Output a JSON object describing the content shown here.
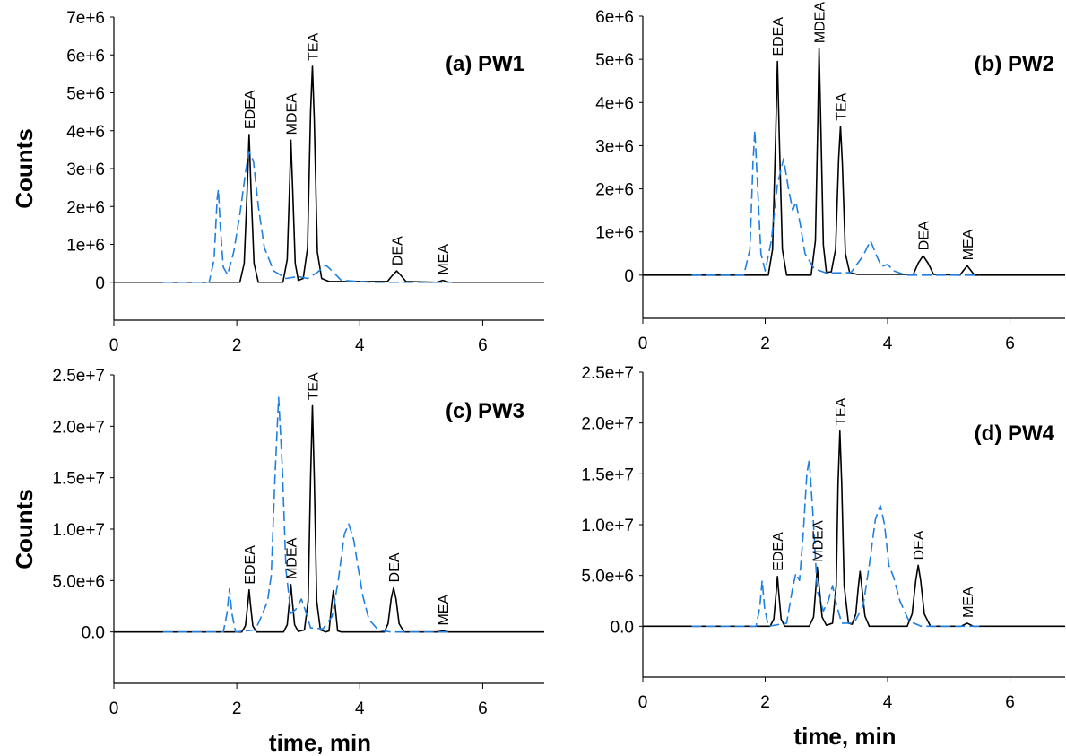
{
  "chart_data": [
    {
      "type": "line",
      "title": "(a) PW1",
      "ylabel": "Counts",
      "xlim": [
        0,
        7
      ],
      "xticks": [
        0,
        2,
        4,
        6
      ],
      "ylim": [
        -1000000,
        7000000
      ],
      "yticks": [
        0,
        {
          "value": 1000000,
          "label": "1e+6"
        },
        {
          "value": 2000000,
          "label": "2e+6"
        },
        {
          "value": 3000000,
          "label": "3e+6"
        },
        {
          "value": 4000000,
          "label": "4e+6"
        },
        {
          "value": 5000000,
          "label": "5e+6"
        },
        {
          "value": 6000000,
          "label": "6e+6"
        },
        {
          "value": 7000000,
          "label": "7e+6"
        }
      ],
      "series": [
        {
          "color": "#000000",
          "style": "solid",
          "x": [
            0,
            2.05,
            2.12,
            2.17,
            2.2,
            2.23,
            2.28,
            2.35,
            2.75,
            2.82,
            2.86,
            2.88,
            2.91,
            2.95,
            3.0,
            3.08,
            3.15,
            3.2,
            3.23,
            3.26,
            3.31,
            3.38,
            3.5,
            4.45,
            4.53,
            4.6,
            4.67,
            4.75,
            5.25,
            5.35,
            5.45,
            7
          ],
          "values": [
            0,
            0,
            500000,
            2500000,
            3900000,
            2500000,
            500000,
            0,
            0,
            600000,
            2600000,
            3750000,
            2400000,
            500000,
            50000,
            100000,
            900000,
            4500000,
            5700000,
            4300000,
            800000,
            100000,
            20000,
            20000,
            180000,
            300000,
            180000,
            20000,
            0,
            50000,
            0,
            0
          ]
        },
        {
          "color": "#1f7fe0",
          "style": "dashed",
          "x": [
            0.8,
            1.55,
            1.63,
            1.68,
            1.7,
            1.73,
            1.78,
            1.85,
            1.95,
            2.05,
            2.15,
            2.2,
            2.27,
            2.35,
            2.45,
            2.6,
            2.8,
            3.0,
            3.15,
            3.3,
            3.45,
            3.55,
            3.7,
            4.2,
            5.5
          ],
          "values": [
            0,
            0,
            600000,
            2200000,
            2450000,
            1500000,
            400000,
            200000,
            800000,
            1800000,
            3000000,
            3450000,
            3200000,
            2000000,
            900000,
            300000,
            100000,
            150000,
            100000,
            250000,
            450000,
            300000,
            50000,
            0,
            0
          ]
        }
      ],
      "annotations": [
        {
          "text": "EDEA",
          "x": 2.2,
          "y": 3900000
        },
        {
          "text": "MDEA",
          "x": 2.88,
          "y": 3750000
        },
        {
          "text": "TEA",
          "x": 3.23,
          "y": 5700000
        },
        {
          "text": "DEA",
          "x": 4.6,
          "y": 300000
        },
        {
          "text": "MEA",
          "x": 5.35,
          "y": 50000
        }
      ]
    },
    {
      "type": "line",
      "title": "(b) PW2",
      "xlim": [
        0,
        6.9
      ],
      "xticks": [
        0,
        2,
        4,
        6
      ],
      "ylim": [
        -1000000,
        6000000
      ],
      "yticks": [
        0,
        {
          "value": 1000000,
          "label": "1e+6"
        },
        {
          "value": 2000000,
          "label": "2e+6"
        },
        {
          "value": 3000000,
          "label": "3e+6"
        },
        {
          "value": 4000000,
          "label": "4e+6"
        },
        {
          "value": 5000000,
          "label": "5e+6"
        },
        {
          "value": 6000000,
          "label": "6e+6"
        }
      ],
      "series": [
        {
          "color": "#000000",
          "style": "solid",
          "x": [
            0,
            2.05,
            2.12,
            2.17,
            2.2,
            2.23,
            2.28,
            2.35,
            2.75,
            2.82,
            2.86,
            2.88,
            2.91,
            2.95,
            3.0,
            3.08,
            3.15,
            3.2,
            3.23,
            3.26,
            3.31,
            3.38,
            3.5,
            4.42,
            4.5,
            4.58,
            4.66,
            4.75,
            5.18,
            5.3,
            5.42,
            6.9
          ],
          "values": [
            0,
            0,
            600000,
            3200000,
            4950000,
            3200000,
            600000,
            0,
            0,
            800000,
            3600000,
            5250000,
            3400000,
            700000,
            60000,
            80000,
            600000,
            2700000,
            3450000,
            2600000,
            500000,
            60000,
            20000,
            20000,
            280000,
            450000,
            280000,
            20000,
            0,
            220000,
            0,
            0
          ]
        },
        {
          "color": "#1f7fe0",
          "style": "dashed",
          "x": [
            0.8,
            1.65,
            1.75,
            1.8,
            1.83,
            1.87,
            1.93,
            2.0,
            2.1,
            2.2,
            2.3,
            2.38,
            2.45,
            2.5,
            2.57,
            2.65,
            2.8,
            3.0,
            3.4,
            3.6,
            3.72,
            3.82,
            3.9,
            4.0,
            4.1,
            4.3,
            5.5
          ],
          "values": [
            0,
            0,
            600000,
            2600000,
            3350000,
            2200000,
            500000,
            100000,
            800000,
            2100000,
            2700000,
            2000000,
            1500000,
            1700000,
            1200000,
            500000,
            150000,
            50000,
            60000,
            450000,
            800000,
            450000,
            200000,
            250000,
            100000,
            0,
            0
          ]
        }
      ],
      "annotations": [
        {
          "text": "EDEA",
          "x": 2.2,
          "y": 4950000
        },
        {
          "text": "MDEA",
          "x": 2.88,
          "y": 5250000
        },
        {
          "text": "TEA",
          "x": 3.23,
          "y": 3450000
        },
        {
          "text": "DEA",
          "x": 4.58,
          "y": 450000
        },
        {
          "text": "MEA",
          "x": 5.3,
          "y": 220000
        }
      ]
    },
    {
      "type": "line",
      "title": "(c) PW3",
      "ylabel": "Counts",
      "xlabel": "time, min",
      "xlim": [
        0,
        7
      ],
      "xticks": [
        0,
        2,
        4,
        6
      ],
      "ylim": [
        -5000000,
        25000000
      ],
      "yticks": [
        {
          "value": 0,
          "label": "0.0"
        },
        {
          "value": 5000000,
          "label": "5.0e+6"
        },
        {
          "value": 10000000,
          "label": "1.0e+7"
        },
        {
          "value": 15000000,
          "label": "1.5e+7"
        },
        {
          "value": 20000000,
          "label": "2.0e+7"
        },
        {
          "value": 25000000,
          "label": "2.5e+7"
        }
      ],
      "series": [
        {
          "color": "#000000",
          "style": "solid",
          "x": [
            0,
            2.08,
            2.14,
            2.18,
            2.2,
            2.22,
            2.26,
            2.32,
            2.76,
            2.82,
            2.86,
            2.88,
            2.9,
            2.94,
            3.0,
            3.1,
            3.16,
            3.2,
            3.23,
            3.26,
            3.3,
            3.36,
            3.45,
            3.5,
            3.54,
            3.57,
            3.6,
            3.64,
            3.7,
            4.4,
            4.46,
            4.51,
            4.55,
            4.59,
            4.64,
            4.72,
            5.25,
            5.35,
            5.45,
            7
          ],
          "values": [
            0,
            0,
            600000,
            2800000,
            4100000,
            2800000,
            600000,
            0,
            0,
            700000,
            3200000,
            4600000,
            3200000,
            700000,
            50000,
            200000,
            3000000,
            15000000,
            22000000,
            15000000,
            3000000,
            200000,
            0,
            100000,
            2500000,
            4000000,
            2500000,
            100000,
            0,
            0,
            800000,
            3200000,
            4300000,
            3200000,
            800000,
            0,
            0,
            100000,
            0,
            0
          ]
        },
        {
          "color": "#1f7fe0",
          "style": "dashed",
          "x": [
            0.8,
            1.78,
            1.84,
            1.88,
            1.92,
            1.98,
            2.3,
            2.4,
            2.5,
            2.56,
            2.62,
            2.68,
            2.74,
            2.8,
            2.88,
            2.96,
            3.05,
            3.12,
            3.2,
            3.4,
            3.55,
            3.65,
            3.75,
            3.82,
            3.9,
            3.98,
            4.05,
            4.15,
            4.3,
            4.5,
            5.5
          ],
          "values": [
            0,
            0,
            1800000,
            4200000,
            1800000,
            0,
            200000,
            1500000,
            3000000,
            5500000,
            15000000,
            22800000,
            16000000,
            6000000,
            1800000,
            2200000,
            3200000,
            2000000,
            400000,
            300000,
            1500000,
            5000000,
            9500000,
            10500000,
            9000000,
            6000000,
            3500000,
            1200000,
            200000,
            0,
            0
          ]
        }
      ],
      "annotations": [
        {
          "text": "EDEA",
          "x": 2.2,
          "y": 4100000
        },
        {
          "text": "MDEA",
          "x": 2.88,
          "y": 4600000
        },
        {
          "text": "TEA",
          "x": 3.23,
          "y": 22000000
        },
        {
          "text": "DEA",
          "x": 4.55,
          "y": 4300000
        },
        {
          "text": "MEA",
          "x": 5.35,
          "y": 100000
        }
      ]
    },
    {
      "type": "line",
      "title": "(d) PW4",
      "xlabel": "time, min",
      "xlim": [
        0,
        6.9
      ],
      "xticks": [
        0,
        2,
        4,
        6
      ],
      "ylim": [
        -5000000,
        25000000
      ],
      "yticks": [
        {
          "value": 0,
          "label": "0.0"
        },
        {
          "value": 5000000,
          "label": "5.0e+6"
        },
        {
          "value": 10000000,
          "label": "1.0e+7"
        },
        {
          "value": 15000000,
          "label": "1.5e+7"
        },
        {
          "value": 20000000,
          "label": "2.0e+7"
        },
        {
          "value": 25000000,
          "label": "2.5e+7"
        }
      ],
      "series": [
        {
          "color": "#000000",
          "style": "solid",
          "x": [
            0,
            2.08,
            2.14,
            2.18,
            2.2,
            2.22,
            2.26,
            2.32,
            2.72,
            2.79,
            2.83,
            2.85,
            2.88,
            2.93,
            3.0,
            3.1,
            3.16,
            3.19,
            3.22,
            3.25,
            3.29,
            3.36,
            3.42,
            3.48,
            3.52,
            3.55,
            3.58,
            3.63,
            3.7,
            4.32,
            4.4,
            4.46,
            4.5,
            4.54,
            4.6,
            4.7,
            5.2,
            5.3,
            5.4,
            6.9
          ],
          "values": [
            0,
            0,
            700000,
            3400000,
            4900000,
            3400000,
            700000,
            0,
            0,
            900000,
            4000000,
            5800000,
            4000000,
            900000,
            100000,
            300000,
            4000000,
            14000000,
            19200000,
            14000000,
            4000000,
            300000,
            200000,
            1200000,
            3800000,
            5400000,
            3800000,
            1000000,
            0,
            0,
            1200000,
            4500000,
            6000000,
            4500000,
            1200000,
            0,
            0,
            300000,
            0,
            0
          ]
        },
        {
          "color": "#1f7fe0",
          "style": "dashed",
          "x": [
            0.8,
            1.85,
            1.91,
            1.95,
            1.99,
            2.05,
            2.35,
            2.44,
            2.5,
            2.56,
            2.62,
            2.68,
            2.72,
            2.78,
            2.85,
            2.95,
            3.03,
            3.1,
            3.17,
            3.25,
            3.45,
            3.6,
            3.7,
            3.8,
            3.88,
            3.95,
            4.02,
            4.1,
            4.2,
            4.35,
            4.55,
            5.5
          ],
          "values": [
            0,
            0,
            1800000,
            4500000,
            1800000,
            0,
            300000,
            3500000,
            5200000,
            4500000,
            9000000,
            15000000,
            16400000,
            11000000,
            3500000,
            1500000,
            2500000,
            4000000,
            2000000,
            300000,
            300000,
            2000000,
            6000000,
            10500000,
            11900000,
            10000000,
            6000000,
            4800000,
            2500000,
            500000,
            0,
            0
          ]
        }
      ],
      "annotations": [
        {
          "text": "EDEA",
          "x": 2.2,
          "y": 4900000
        },
        {
          "text": "MDEA",
          "x": 2.85,
          "y": 5800000
        },
        {
          "text": "TEA",
          "x": 3.22,
          "y": 19200000
        },
        {
          "text": "DEA",
          "x": 4.5,
          "y": 6000000
        },
        {
          "text": "MEA",
          "x": 5.3,
          "y": 300000
        }
      ]
    }
  ]
}
